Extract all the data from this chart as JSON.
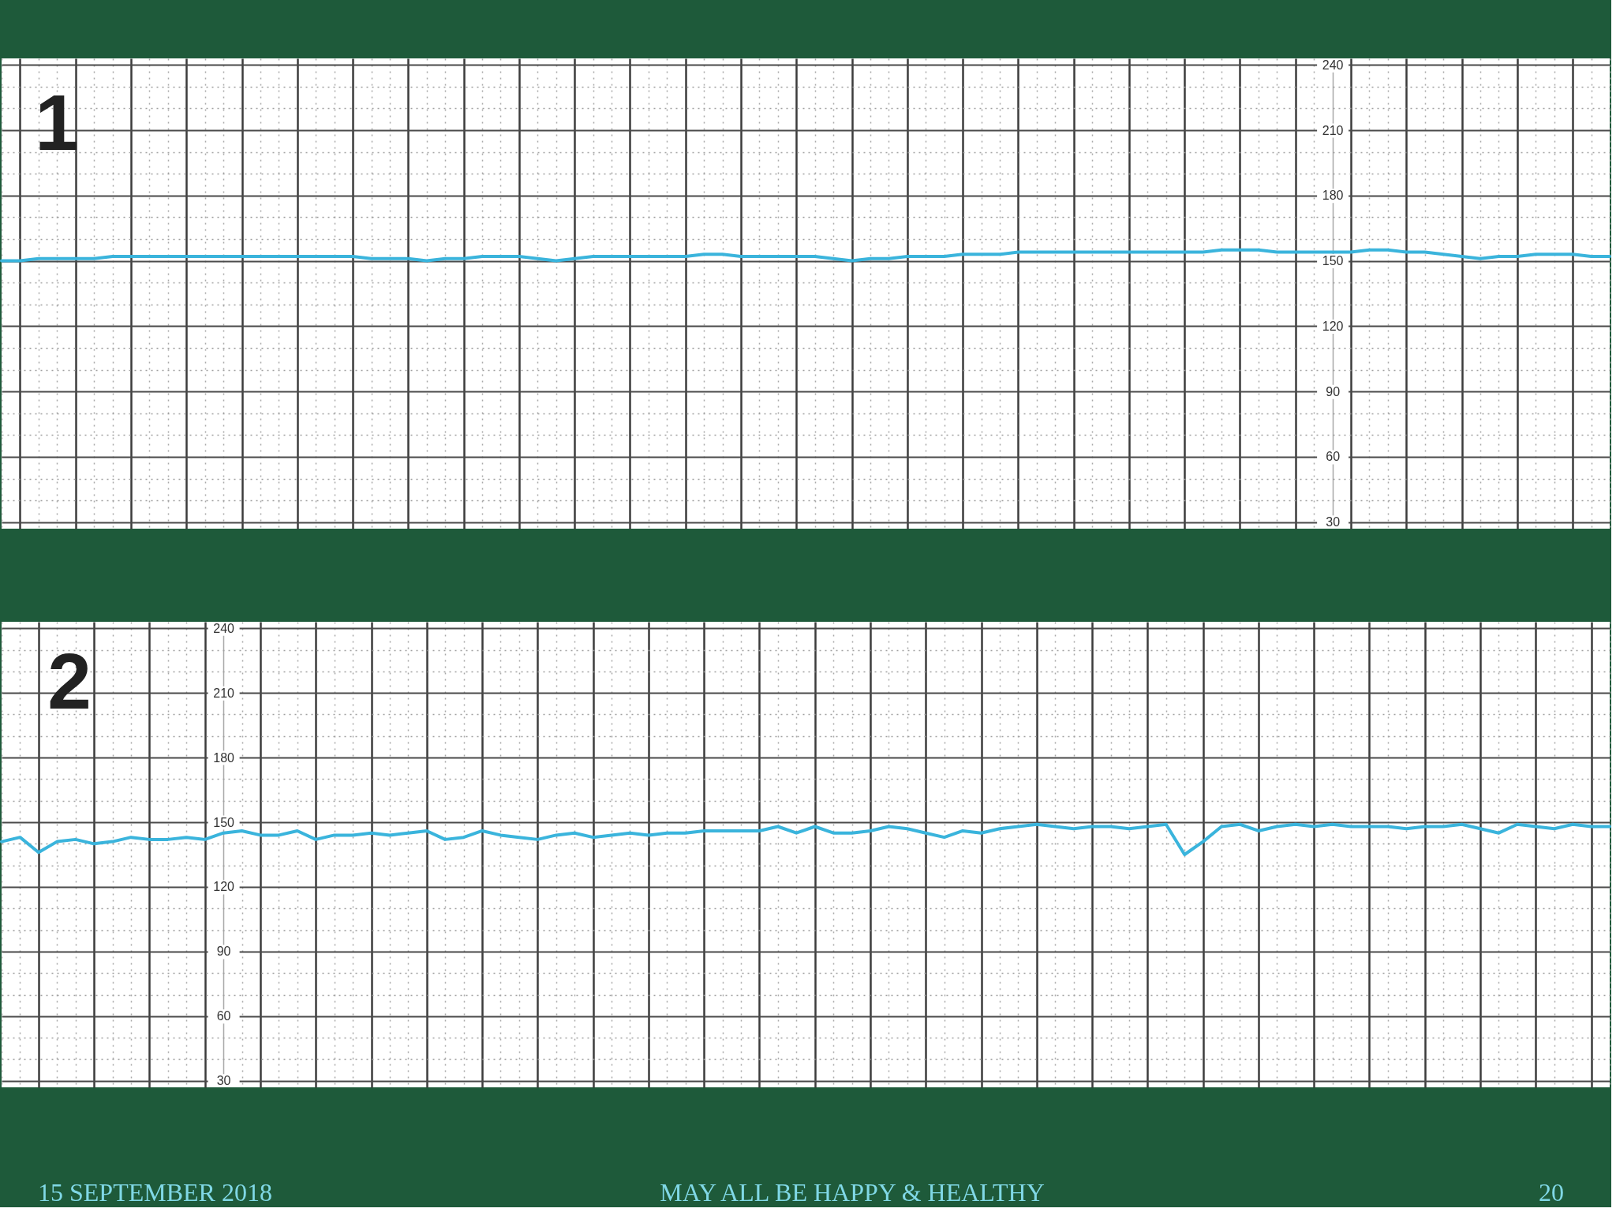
{
  "chart_data": [
    {
      "type": "line",
      "title": "1",
      "categories": [
        null,
        null,
        null,
        null,
        null,
        null,
        null,
        null,
        null,
        null,
        null,
        null,
        null,
        null,
        null,
        null,
        null,
        null,
        null,
        null,
        null,
        null,
        null,
        null,
        null,
        null,
        null,
        null,
        null,
        null,
        null,
        null,
        null,
        null,
        null,
        null,
        null,
        null,
        null,
        null,
        null,
        null,
        null,
        null,
        null,
        null,
        null,
        null,
        null,
        null,
        null,
        null,
        null,
        null,
        null,
        null,
        null,
        null,
        null,
        null,
        null,
        null,
        null,
        null,
        null,
        null,
        null,
        null,
        null,
        null,
        null,
        null,
        null,
        null,
        null,
        null,
        null,
        null,
        null,
        null,
        null,
        null,
        null,
        null,
        null,
        null,
        null,
        null
      ],
      "series": [
        {
          "color": "#3ab4dc",
          "values": [
            150,
            150,
            151,
            151,
            151,
            151,
            152,
            152,
            152,
            152,
            152,
            152,
            152,
            152,
            152,
            152,
            152,
            152,
            152,
            152,
            151,
            151,
            151,
            150,
            151,
            151,
            152,
            152,
            152,
            151,
            150,
            151,
            152,
            152,
            152,
            152,
            152,
            152,
            153,
            153,
            152,
            152,
            152,
            152,
            152,
            151,
            150,
            151,
            151,
            152,
            152,
            152,
            153,
            153,
            153,
            154,
            154,
            154,
            154,
            154,
            154,
            154,
            154,
            154,
            154,
            154,
            155,
            155,
            155,
            154,
            154,
            154,
            154,
            154,
            155,
            155,
            154,
            154,
            153,
            152,
            151,
            152,
            152,
            153,
            153,
            153,
            152,
            152
          ]
        }
      ],
      "ylim": [
        27,
        243
      ],
      "yticks": [
        30,
        {
          "value": 40,
          "label": null
        },
        {
          "value": 50,
          "label": null
        },
        60,
        {
          "value": 70,
          "label": null
        },
        {
          "value": 80,
          "label": null
        },
        90,
        {
          "value": 100,
          "label": null
        },
        {
          "value": 110,
          "label": null
        },
        120,
        {
          "value": 130,
          "label": null
        },
        {
          "value": 140,
          "label": null
        },
        150,
        {
          "value": 160,
          "label": null
        },
        {
          "value": 170,
          "label": null
        },
        180,
        {
          "value": 190,
          "label": null
        },
        {
          "value": 200,
          "label": null
        },
        210,
        {
          "value": 220,
          "label": null
        },
        {
          "value": 230,
          "label": null
        },
        240
      ],
      "grid": true,
      "tick_labels": "y"
    },
    {
      "type": "line",
      "title": "2",
      "categories": [
        null,
        null,
        null,
        null,
        null,
        null,
        null,
        null,
        null,
        null,
        null,
        null,
        null,
        null,
        null,
        null,
        null,
        null,
        null,
        null,
        null,
        null,
        null,
        null,
        null,
        null,
        null,
        null,
        null,
        null,
        null,
        null,
        null,
        null,
        null,
        null,
        null,
        null,
        null,
        null,
        null,
        null,
        null,
        null,
        null,
        null,
        null,
        null,
        null,
        null,
        null,
        null,
        null,
        null,
        null,
        null,
        null,
        null,
        null,
        null,
        null,
        null,
        null,
        null,
        null,
        null,
        null,
        null,
        null,
        null,
        null,
        null,
        null,
        null,
        null,
        null,
        null,
        null,
        null,
        null,
        null,
        null,
        null,
        null,
        null,
        null,
        null,
        null
      ],
      "series": [
        {
          "color": "#3ab4dc",
          "values": [
            141,
            143,
            136,
            141,
            142,
            140,
            141,
            143,
            142,
            142,
            143,
            142,
            145,
            146,
            144,
            144,
            146,
            142,
            144,
            144,
            145,
            144,
            145,
            146,
            142,
            143,
            146,
            144,
            143,
            142,
            144,
            145,
            143,
            144,
            145,
            144,
            145,
            145,
            146,
            146,
            146,
            146,
            148,
            145,
            148,
            145,
            145,
            146,
            148,
            147,
            145,
            143,
            146,
            145,
            147,
            148,
            149,
            148,
            147,
            148,
            148,
            147,
            148,
            149,
            135,
            141,
            148,
            149,
            146,
            148,
            149,
            148,
            149,
            148,
            148,
            148,
            147,
            148,
            148,
            149,
            147,
            145,
            149,
            148,
            147,
            149,
            148,
            148
          ]
        }
      ],
      "ylim": [
        27,
        243
      ],
      "yticks": [
        30,
        {
          "value": 40,
          "label": null
        },
        {
          "value": 50,
          "label": null
        },
        60,
        {
          "value": 70,
          "label": null
        },
        {
          "value": 80,
          "label": null
        },
        90,
        {
          "value": 100,
          "label": null
        },
        {
          "value": 110,
          "label": null
        },
        120,
        {
          "value": 130,
          "label": null
        },
        {
          "value": 140,
          "label": null
        },
        150,
        {
          "value": 160,
          "label": null
        },
        {
          "value": 170,
          "label": null
        },
        180,
        {
          "value": 190,
          "label": null
        },
        {
          "value": 200,
          "label": null
        },
        210,
        {
          "value": 220,
          "label": null
        },
        {
          "value": 230,
          "label": null
        },
        240
      ],
      "grid": true,
      "tick_labels": "y",
      "annotations": [
        "15 SEPTEMBER 2018",
        "MAY ALL BE HAPPY & HEALTHY",
        "20"
      ]
    }
  ]
}
